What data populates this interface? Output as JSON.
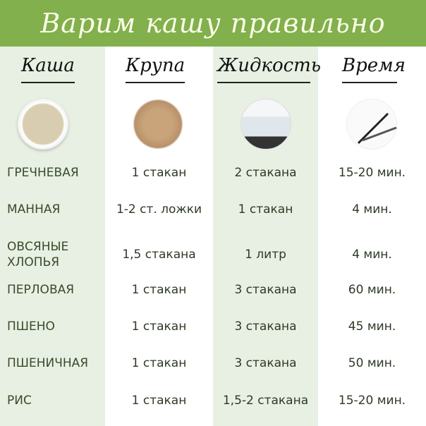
{
  "title": "Варим кашу правильно",
  "headers": [
    "Каша",
    "Крупа",
    "Жидкость",
    "Время"
  ],
  "images": [
    "porridge-bowl",
    "grain-pile",
    "boiling-water-pot",
    "clock-fork-knife"
  ],
  "colors": {
    "banner": "#82b04c",
    "column_tint": "#e7f0e2",
    "text": "#2e3a26"
  },
  "rows": [
    {
      "name": "ГРЕЧНЕВАЯ",
      "grain": "1 стакан",
      "liquid": "2 стакана",
      "time": "15-20 мин."
    },
    {
      "name": "МАННАЯ",
      "grain": "1-2 ст. ложки",
      "liquid": "1 стакан",
      "time": "4 мин."
    },
    {
      "name": "ОВСЯНЫЕ ХЛОПЬЯ",
      "grain": "1,5 стакана",
      "liquid": "1 литр",
      "time": "4 мин."
    },
    {
      "name": "ПЕРЛОВАЯ",
      "grain": "1 стакан",
      "liquid": "3 стакана",
      "time": "60 мин."
    },
    {
      "name": "ПШЕНО",
      "grain": "1 стакан",
      "liquid": "3 стакана",
      "time": "45 мин."
    },
    {
      "name": "ПШЕНИЧНАЯ",
      "grain": "1 стакан",
      "liquid": "3 стакана",
      "time": "50 мин."
    },
    {
      "name": "РИС",
      "grain": "1 стакан",
      "liquid": "1,5-2 стакана",
      "time": "15-20 мин."
    }
  ]
}
